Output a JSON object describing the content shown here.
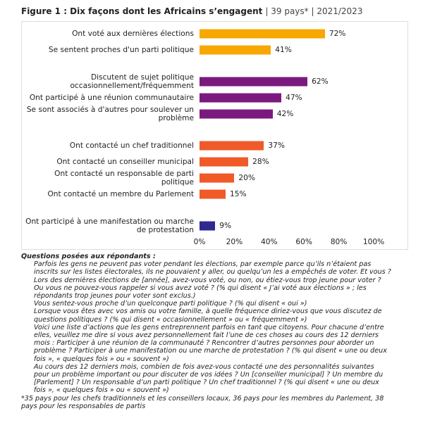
{
  "chart_data": {
    "type": "bar",
    "title": "Figure 1 : Dix façons dont les Africains s’engagent",
    "subtitle": "| 39 pays* | 2021/2023",
    "categories": [
      "Ont voté aux dernières élections",
      "Se sentent proches d'un parti politique",
      "Discutent de sujet politique occasionnellement/fréquemment",
      "Ont participé à une réunion communautaire",
      "Se sont associés à d'autres pour soulever un problème",
      "Ont contacté un chef traditionnel",
      "Ont contacté un conseiller municipal",
      "Ont contacté un responsable de parti politique",
      "Ont contacté un membre du Parlement",
      "Ont participé à une manifestation ou marche de protestation"
    ],
    "values": [
      72,
      41,
      62,
      47,
      42,
      37,
      28,
      20,
      15,
      9
    ],
    "value_labels": [
      "72%",
      "41%",
      "62%",
      "47%",
      "42%",
      "37%",
      "28%",
      "20%",
      "15%",
      "9%"
    ],
    "colors": [
      "#f7a800",
      "#f7a800",
      "#7b1a7e",
      "#7b1a7e",
      "#7b1a7e",
      "#f05a28",
      "#f05a28",
      "#f05a28",
      "#f05a28",
      "#2e2a8f"
    ],
    "group_breaks_after": [
      1,
      4,
      8
    ],
    "xlim": [
      0,
      100
    ],
    "xticks": [
      {
        "value": 0,
        "label": "0%"
      },
      {
        "value": 20,
        "label": "20%"
      },
      {
        "value": 40,
        "label": "40%"
      },
      {
        "value": 60,
        "label": "60%"
      },
      {
        "value": 80,
        "label": "80%"
      },
      {
        "value": 100,
        "label": "100%"
      }
    ],
    "grid": false
  },
  "notes": {
    "heading": "Questions posées aux répondants :",
    "paragraphs": [
      "Parfois les gens ne peuvent pas voter pendant les élections, par exemple parce qu’ils n’étaient pas inscrits sur les listes électorales, ils ne pouvaient y aller, ou quelqu’un les a empêchés de voter. Et vous ? Lors des dernières élections de [année], avez-vous voté, ou non, ou étiez-vous trop jeune pour voter ? Ou vous ne pouvez-vous rappeler si vous avez voté ? (% qui disent « J’ai voté aux élections » ; les répondants trop jeunes pour voter sont exclus.)",
      "Vous sentez-vous proche d’un quelconque parti politique ? (% qui disent « oui »)",
      "Lorsque vous êtes avec vos amis ou votre famille, à quelle fréquence diriez-vous que vous discutez de questions politiques ? (% qui disent « occasionnellement » ou « fréquemment »)",
      "Voici une liste d’actions que les gens entreprennent parfois en tant que citoyens. Pour chacune d’entre elles, veuillez me dire si vous avez personnellement fait l’une de ces choses au cours des 12 derniers mois : Participer à une réunion de la communauté ? Rencontrer d’autres personnes pour aborder un problème ? Participer à une manifestation ou une marche de protestation ? (% qui disent « une ou deux fois », « quelques fois » ou « souvent »)",
      "Au cours des 12 derniers mois, combien de fois avez-vous contacté une des personnalités suivantes pour un problème important ou pour discuter de vos idées ? Un [conseiller municipal] ? Un membre du [Parlement] ? Un responsable d’un parti politique ? Un chef traditionnel ? (% qui disent « une ou deux fois », « quelques fois » ou « souvent »)"
    ],
    "footnote": "*35 pays pour les chefs traditionnels et les conseillers locaux, 36 pays pour les membres du Parlement, 38 pays pour les responsables de partis"
  }
}
